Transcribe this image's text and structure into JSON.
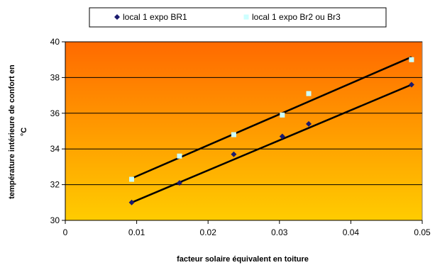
{
  "chart_data": {
    "type": "scatter",
    "xlabel": "facteur solaire équivalent en toiture",
    "ylabel_lines": [
      "température intérieure de confort en",
      "°C"
    ],
    "xlim": [
      0,
      0.05
    ],
    "ylim": [
      30,
      40
    ],
    "xticks": [
      "0",
      "0.01",
      "0.02",
      "0.03",
      "0.04",
      "0.05"
    ],
    "xtick_values": [
      0,
      0.01,
      0.02,
      0.03,
      0.04,
      0.05
    ],
    "yticks": [
      "30",
      "32",
      "34",
      "36",
      "38",
      "40"
    ],
    "ytick_values": [
      30,
      32,
      34,
      36,
      38,
      40
    ],
    "grid": "horizontal",
    "legend_position": "top",
    "background_gradient": [
      "#ff6a00",
      "#ffcc00"
    ],
    "series": [
      {
        "name": "local 1 expo BR1",
        "marker": "diamond",
        "color": "#1a1a6e",
        "x": [
          0.0093,
          0.016,
          0.0236,
          0.0304,
          0.0341,
          0.0485
        ],
        "y": [
          31.0,
          32.1,
          33.7,
          34.7,
          35.4,
          37.6
        ],
        "trendline": [
          [
            0.0093,
            31.0
          ],
          [
            0.0485,
            37.6
          ]
        ]
      },
      {
        "name": "local 1 expo Br2 ou Br3",
        "marker": "square",
        "color": "#ccffff",
        "x": [
          0.0093,
          0.016,
          0.0236,
          0.0304,
          0.0341,
          0.0485
        ],
        "y": [
          32.3,
          33.6,
          34.8,
          35.9,
          37.1,
          39.0
        ],
        "trendline": [
          [
            0.0093,
            32.35
          ],
          [
            0.0485,
            39.15
          ]
        ]
      }
    ]
  }
}
